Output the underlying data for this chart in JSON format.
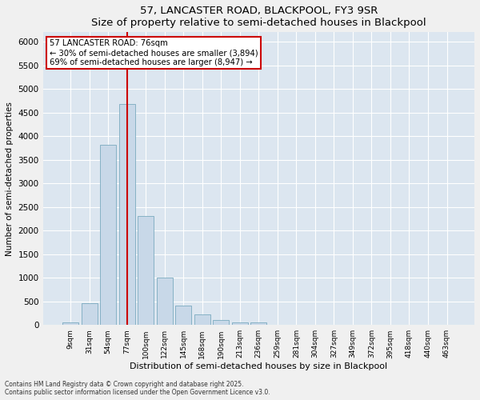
{
  "title1": "57, LANCASTER ROAD, BLACKPOOL, FY3 9SR",
  "title2": "Size of property relative to semi-detached houses in Blackpool",
  "xlabel": "Distribution of semi-detached houses by size in Blackpool",
  "ylabel": "Number of semi-detached properties",
  "categories": [
    "9sqm",
    "31sqm",
    "54sqm",
    "77sqm",
    "100sqm",
    "122sqm",
    "145sqm",
    "168sqm",
    "190sqm",
    "213sqm",
    "236sqm",
    "259sqm",
    "281sqm",
    "304sqm",
    "327sqm",
    "349sqm",
    "372sqm",
    "395sqm",
    "418sqm",
    "440sqm",
    "463sqm"
  ],
  "values": [
    50,
    460,
    3820,
    4680,
    2300,
    1010,
    410,
    220,
    100,
    60,
    50,
    0,
    0,
    0,
    0,
    0,
    0,
    0,
    0,
    0,
    0
  ],
  "bar_color": "#c8d8e8",
  "bar_edge_color": "#7aaabf",
  "annotation_text_line1": "57 LANCASTER ROAD: 76sqm",
  "annotation_text_line2": "← 30% of semi-detached houses are smaller (3,894)",
  "annotation_text_line3": "69% of semi-detached houses are larger (8,947) →",
  "annotation_box_color": "#cc0000",
  "vline_color": "#cc0000",
  "vline_x": 3,
  "ylim": [
    0,
    6200
  ],
  "yticks": [
    0,
    500,
    1000,
    1500,
    2000,
    2500,
    3000,
    3500,
    4000,
    4500,
    5000,
    5500,
    6000
  ],
  "background_color": "#dce6f0",
  "fig_background": "#f0f0f0",
  "footnote": "Contains HM Land Registry data © Crown copyright and database right 2025.\nContains public sector information licensed under the Open Government Licence v3.0."
}
